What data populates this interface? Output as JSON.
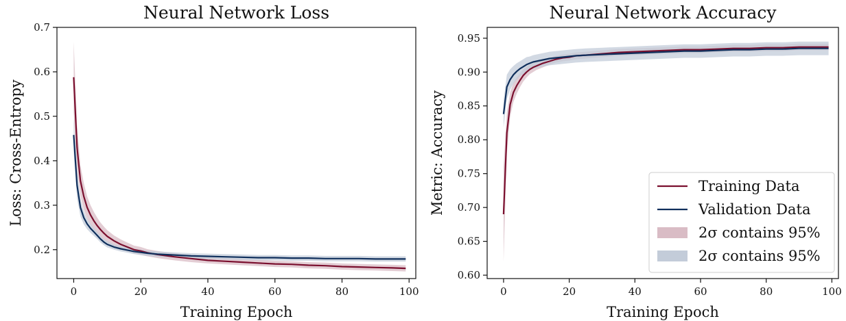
{
  "chart_data": [
    {
      "type": "line",
      "title": "Neural Network Loss",
      "xlabel": "Training Epoch",
      "ylabel": "Loss: Cross-Entropy",
      "xlim": [
        -5,
        102
      ],
      "ylim": [
        0.135,
        0.7
      ],
      "xticks": [
        0,
        20,
        40,
        60,
        80,
        100
      ],
      "yticks": [
        0.2,
        0.3,
        0.4,
        0.5,
        0.6,
        0.7
      ],
      "ytick_labels": [
        "0.2",
        "0.3",
        "0.4",
        "0.5",
        "0.6",
        "0.7"
      ],
      "grid": false,
      "series": [
        {
          "name": "Training Data",
          "color": "#7a0f2e",
          "band_color": "#d9bcc5",
          "x": [
            0,
            1,
            2,
            3,
            4,
            5,
            6,
            7,
            8,
            9,
            10,
            12,
            14,
            16,
            18,
            20,
            22,
            25,
            30,
            35,
            40,
            45,
            50,
            55,
            60,
            65,
            70,
            75,
            80,
            85,
            90,
            95,
            99
          ],
          "y": [
            0.588,
            0.43,
            0.355,
            0.32,
            0.295,
            0.278,
            0.265,
            0.254,
            0.245,
            0.237,
            0.23,
            0.22,
            0.212,
            0.206,
            0.2,
            0.197,
            0.193,
            0.189,
            0.184,
            0.18,
            0.176,
            0.174,
            0.172,
            0.17,
            0.168,
            0.167,
            0.165,
            0.164,
            0.162,
            0.161,
            0.16,
            0.159,
            0.158
          ],
          "band": [
            0.08,
            0.05,
            0.035,
            0.03,
            0.025,
            0.022,
            0.02,
            0.018,
            0.016,
            0.015,
            0.014,
            0.012,
            0.011,
            0.01,
            0.009,
            0.009,
            0.008,
            0.008,
            0.008,
            0.008,
            0.007,
            0.007,
            0.007,
            0.007,
            0.007,
            0.007,
            0.007,
            0.007,
            0.007,
            0.007,
            0.007,
            0.007,
            0.007
          ]
        },
        {
          "name": "Validation Data",
          "color": "#0f2f5c",
          "band_color": "#c3ccd9",
          "x": [
            0,
            1,
            2,
            3,
            4,
            5,
            6,
            7,
            8,
            9,
            10,
            12,
            14,
            16,
            18,
            20,
            22,
            25,
            30,
            35,
            40,
            45,
            50,
            55,
            60,
            65,
            70,
            75,
            80,
            85,
            90,
            95,
            99
          ],
          "y": [
            0.458,
            0.345,
            0.295,
            0.272,
            0.258,
            0.248,
            0.24,
            0.232,
            0.224,
            0.217,
            0.212,
            0.206,
            0.202,
            0.199,
            0.196,
            0.194,
            0.192,
            0.19,
            0.188,
            0.186,
            0.185,
            0.184,
            0.183,
            0.182,
            0.182,
            0.181,
            0.181,
            0.18,
            0.18,
            0.18,
            0.179,
            0.179,
            0.179
          ],
          "band": [
            0.04,
            0.03,
            0.02,
            0.015,
            0.012,
            0.01,
            0.009,
            0.008,
            0.008,
            0.007,
            0.007,
            0.006,
            0.006,
            0.006,
            0.006,
            0.006,
            0.006,
            0.006,
            0.006,
            0.006,
            0.006,
            0.006,
            0.006,
            0.006,
            0.006,
            0.006,
            0.006,
            0.006,
            0.006,
            0.006,
            0.006,
            0.006,
            0.006
          ]
        }
      ]
    },
    {
      "type": "line",
      "title": "Neural Network Accuracy",
      "xlabel": "Training Epoch",
      "ylabel": "Metric: Accuracy",
      "xlim": [
        -5,
        102
      ],
      "ylim": [
        0.595,
        0.966
      ],
      "xticks": [
        0,
        20,
        40,
        60,
        80,
        100
      ],
      "yticks": [
        0.6,
        0.65,
        0.7,
        0.75,
        0.8,
        0.85,
        0.9,
        0.95
      ],
      "ytick_labels": [
        "0.60",
        "0.65",
        "0.70",
        "0.75",
        "0.80",
        "0.85",
        "0.90",
        "0.95"
      ],
      "grid": false,
      "legend_position": "lower-right",
      "legend": [
        "Training Data",
        "Validation Data",
        "2σ contains 95%",
        "2σ contains 95%"
      ],
      "series": [
        {
          "name": "Training Data",
          "color": "#7a0f2e",
          "band_color": "#d9bcc5",
          "x": [
            0,
            1,
            2,
            3,
            4,
            5,
            6,
            7,
            8,
            9,
            10,
            12,
            14,
            16,
            18,
            20,
            22,
            25,
            30,
            35,
            40,
            45,
            50,
            55,
            60,
            65,
            70,
            75,
            80,
            85,
            90,
            95,
            99
          ],
          "y": [
            0.69,
            0.81,
            0.852,
            0.87,
            0.88,
            0.888,
            0.895,
            0.9,
            0.904,
            0.907,
            0.909,
            0.913,
            0.916,
            0.919,
            0.921,
            0.922,
            0.924,
            0.925,
            0.927,
            0.929,
            0.93,
            0.931,
            0.932,
            0.933,
            0.933,
            0.934,
            0.935,
            0.935,
            0.936,
            0.936,
            0.937,
            0.937,
            0.937
          ],
          "band": [
            0.07,
            0.03,
            0.018,
            0.014,
            0.012,
            0.01,
            0.009,
            0.008,
            0.007,
            0.007,
            0.006,
            0.006,
            0.005,
            0.005,
            0.005,
            0.005,
            0.005,
            0.005,
            0.005,
            0.005,
            0.005,
            0.005,
            0.005,
            0.005,
            0.005,
            0.005,
            0.005,
            0.005,
            0.005,
            0.005,
            0.005,
            0.005,
            0.005
          ]
        },
        {
          "name": "Validation Data",
          "color": "#0f2f5c",
          "band_color": "#c3ccd9",
          "x": [
            0,
            1,
            2,
            3,
            4,
            5,
            6,
            7,
            8,
            9,
            10,
            12,
            14,
            16,
            18,
            20,
            22,
            25,
            30,
            35,
            40,
            45,
            50,
            55,
            60,
            65,
            70,
            75,
            80,
            85,
            90,
            95,
            99
          ],
          "y": [
            0.838,
            0.878,
            0.889,
            0.896,
            0.901,
            0.905,
            0.908,
            0.911,
            0.913,
            0.915,
            0.916,
            0.918,
            0.92,
            0.921,
            0.922,
            0.923,
            0.924,
            0.925,
            0.926,
            0.927,
            0.928,
            0.929,
            0.93,
            0.931,
            0.931,
            0.932,
            0.933,
            0.933,
            0.934,
            0.934,
            0.935,
            0.935,
            0.935
          ],
          "band": [
            0.02,
            0.018,
            0.015,
            0.013,
            0.012,
            0.011,
            0.011,
            0.011,
            0.01,
            0.01,
            0.01,
            0.01,
            0.01,
            0.01,
            0.01,
            0.01,
            0.01,
            0.01,
            0.01,
            0.01,
            0.01,
            0.01,
            0.01,
            0.01,
            0.01,
            0.01,
            0.01,
            0.01,
            0.01,
            0.01,
            0.01,
            0.01,
            0.01
          ]
        }
      ]
    }
  ]
}
